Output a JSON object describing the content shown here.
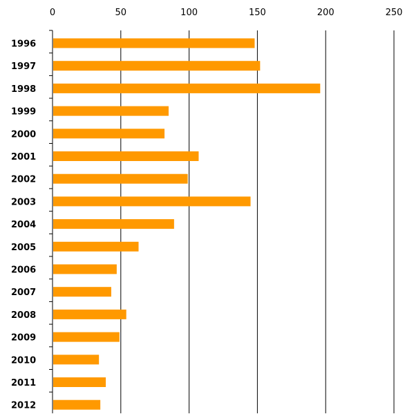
{
  "chart_data": {
    "type": "bar",
    "orientation": "horizontal",
    "categories": [
      "1996",
      "1997",
      "1998",
      "1999",
      "2000",
      "2001",
      "2002",
      "2003",
      "2004",
      "2005",
      "2006",
      "2007",
      "2008",
      "2009",
      "2010",
      "2011",
      "2012"
    ],
    "values": [
      148,
      152,
      196,
      85,
      82,
      107,
      99,
      145,
      89,
      63,
      47,
      43,
      54,
      49,
      34,
      39,
      35
    ],
    "xlim": [
      0,
      250
    ],
    "xticks": [
      "0",
      "50",
      "100",
      "150",
      "200",
      "250"
    ],
    "x_axis_position": "top",
    "grid": "vertical",
    "legend": "none",
    "title": "",
    "xlabel": "",
    "ylabel": "",
    "colors": {
      "bar": "#ff9900",
      "grid": "#000000",
      "text": "#000000"
    }
  }
}
